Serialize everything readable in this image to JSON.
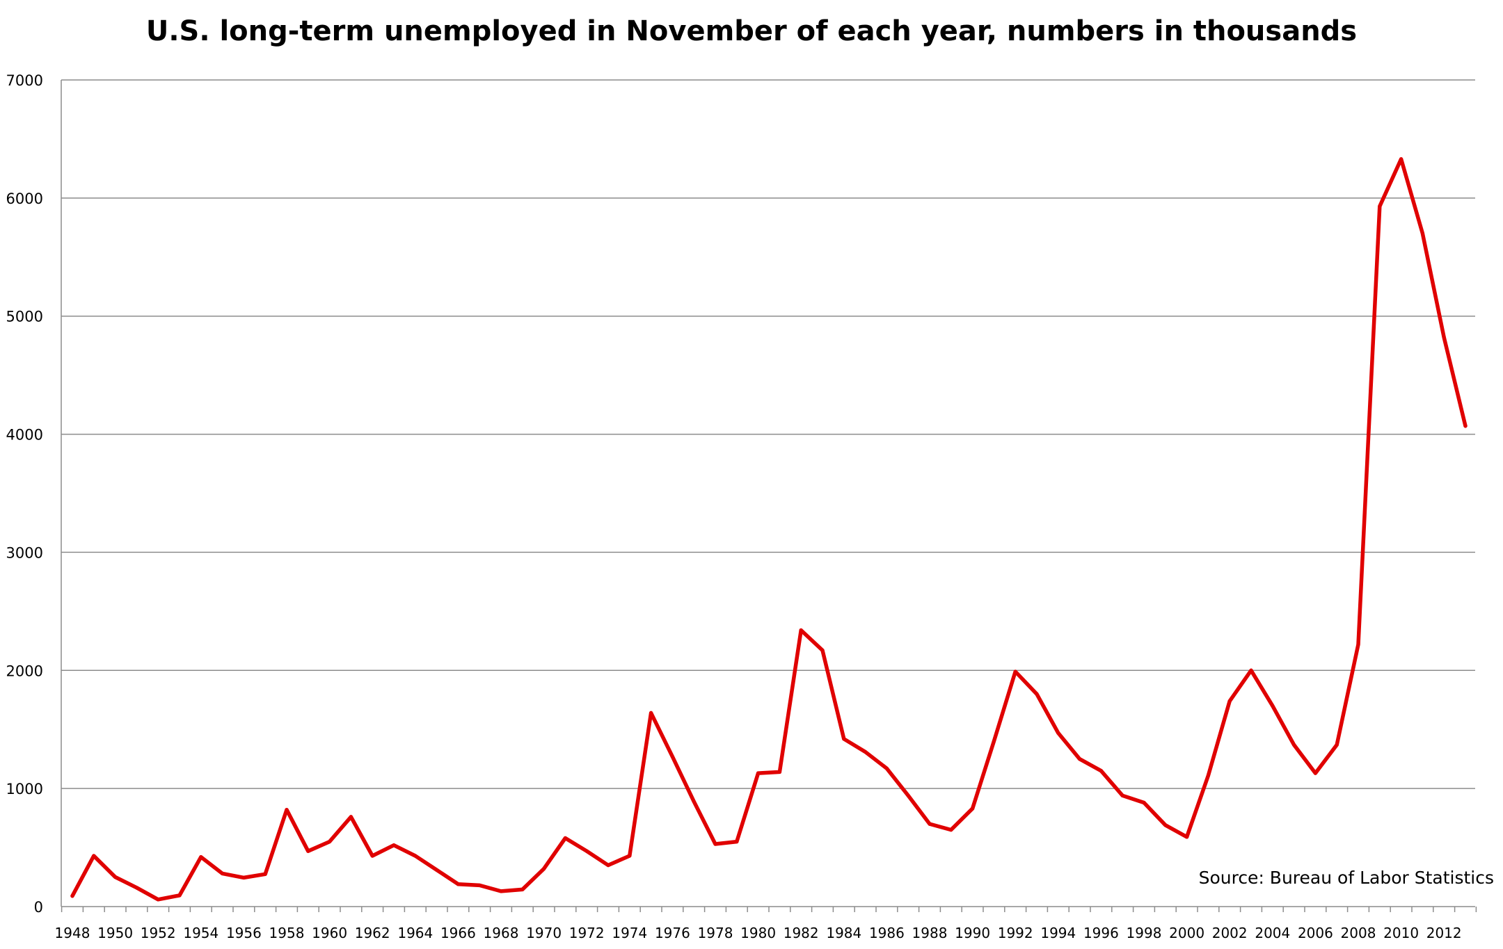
{
  "chart_data": {
    "type": "line",
    "title": "U.S. long-term unemployed in November of each year, numbers in thousands",
    "xlabel": "",
    "ylabel": "",
    "ylim": [
      0,
      7000
    ],
    "yticks": [
      0,
      1000,
      2000,
      3000,
      4000,
      5000,
      6000,
      7000
    ],
    "xtick_labels": [
      "1948",
      "1950",
      "1952",
      "1954",
      "1956",
      "1958",
      "1960",
      "1962",
      "1964",
      "1966",
      "1968",
      "1970",
      "1972",
      "1974",
      "1976",
      "1978",
      "1980",
      "1982",
      "1984",
      "1986",
      "1988",
      "1990",
      "1992",
      "1994",
      "1996",
      "1998",
      "2000",
      "2002",
      "2004",
      "2006",
      "2008",
      "2010",
      "2012"
    ],
    "grid": "horizontal",
    "line_color": "#e00000",
    "annotation": "Source: Bureau of Labor Statistics",
    "x": [
      1948,
      1949,
      1950,
      1951,
      1952,
      1953,
      1954,
      1955,
      1956,
      1957,
      1958,
      1959,
      1960,
      1961,
      1962,
      1963,
      1964,
      1965,
      1966,
      1967,
      1968,
      1969,
      1970,
      1971,
      1972,
      1973,
      1974,
      1975,
      1976,
      1977,
      1978,
      1979,
      1980,
      1981,
      1982,
      1983,
      1984,
      1985,
      1986,
      1987,
      1988,
      1989,
      1990,
      1991,
      1992,
      1993,
      1994,
      1995,
      1996,
      1997,
      1998,
      1999,
      2000,
      2001,
      2002,
      2003,
      2004,
      2005,
      2006,
      2007,
      2008,
      2009,
      2010,
      2011,
      2012,
      2013
    ],
    "values": [
      90,
      430,
      250,
      160,
      60,
      95,
      420,
      280,
      245,
      275,
      820,
      470,
      550,
      760,
      430,
      520,
      430,
      310,
      190,
      180,
      130,
      145,
      320,
      580,
      470,
      350,
      430,
      1640,
      1270,
      890,
      530,
      550,
      1130,
      1140,
      2340,
      2170,
      1420,
      1310,
      1170,
      940,
      700,
      650,
      830,
      1400,
      1990,
      1800,
      1470,
      1250,
      1150,
      940,
      880,
      690,
      590,
      1110,
      1740,
      2000,
      1700,
      1370,
      1130,
      1370,
      2220,
      5930,
      6330,
      5700,
      4820,
      4070
    ]
  }
}
